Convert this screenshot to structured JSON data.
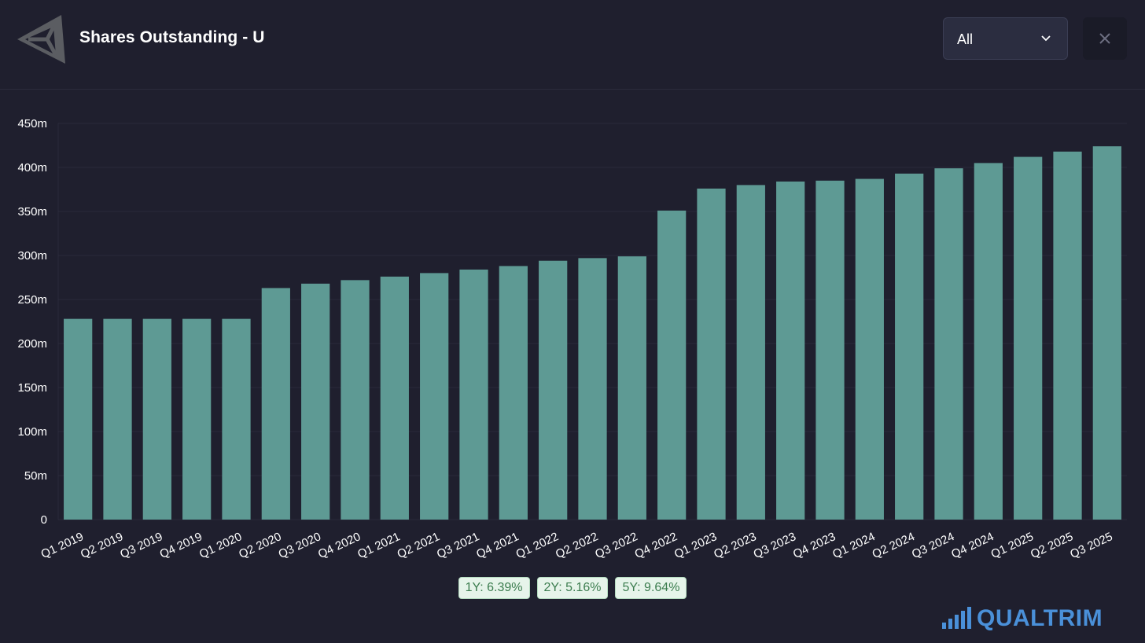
{
  "header": {
    "title": "Shares Outstanding - U",
    "logo_icon": "unity-logo-icon",
    "range_select": {
      "value": "All"
    },
    "close_icon": "close-icon"
  },
  "chart_data": {
    "type": "bar",
    "title": "",
    "xlabel": "",
    "ylabel": "",
    "ylim": [
      0,
      450
    ],
    "y_ticks": [
      "0",
      "50m",
      "100m",
      "150m",
      "200m",
      "250m",
      "300m",
      "350m",
      "400m",
      "450m"
    ],
    "grid": true,
    "bar_color": "#5e9a94",
    "categories": [
      "Q1 2019",
      "Q2 2019",
      "Q3 2019",
      "Q4 2019",
      "Q1 2020",
      "Q2 2020",
      "Q3 2020",
      "Q4 2020",
      "Q1 2021",
      "Q2 2021",
      "Q3 2021",
      "Q4 2021",
      "Q1 2022",
      "Q2 2022",
      "Q3 2022",
      "Q4 2022",
      "Q1 2023",
      "Q2 2023",
      "Q3 2023",
      "Q4 2023",
      "Q1 2024",
      "Q2 2024",
      "Q3 2024",
      "Q4 2024",
      "Q1 2025",
      "Q2 2025",
      "Q3 2025"
    ],
    "values": [
      228,
      228,
      228,
      228,
      228,
      263,
      268,
      272,
      276,
      280,
      284,
      288,
      294,
      297,
      299,
      351,
      376,
      380,
      384,
      385,
      387,
      393,
      399,
      405,
      412,
      418,
      424
    ]
  },
  "growth": {
    "y1": "1Y: 6.39%",
    "y2": "2Y: 5.16%",
    "y5": "5Y: 9.64%"
  },
  "brand": {
    "name": "QUALTRIM",
    "icon": "signal-bars-icon",
    "color": "#4a90d9"
  }
}
